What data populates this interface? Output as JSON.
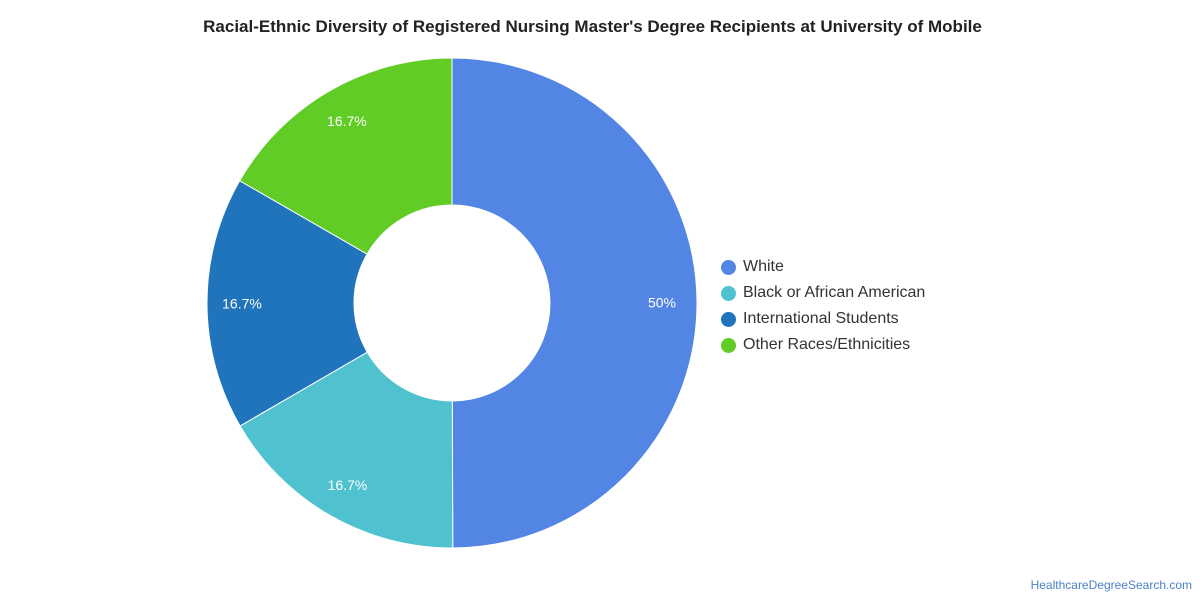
{
  "chart_data": {
    "type": "pie",
    "title": "Racial-Ethnic Diversity of Registered Nursing Master's Degree Recipients at University of Mobile",
    "donut": true,
    "legend_position": "right",
    "slices": [
      {
        "name": "White",
        "value": 50,
        "label": "50%",
        "color": "#5285E4"
      },
      {
        "name": "Black or African American",
        "value": 16.7,
        "label": "16.7%",
        "color": "#4FC1CF"
      },
      {
        "name": "International Students",
        "value": 16.7,
        "label": "16.7%",
        "color": "#1F74BC"
      },
      {
        "name": "Other Races/Ethnicities",
        "value": 16.7,
        "label": "16.7%",
        "color": "#62CC26"
      }
    ]
  },
  "footer": {
    "source": "HealthcareDegreeSearch.com"
  }
}
